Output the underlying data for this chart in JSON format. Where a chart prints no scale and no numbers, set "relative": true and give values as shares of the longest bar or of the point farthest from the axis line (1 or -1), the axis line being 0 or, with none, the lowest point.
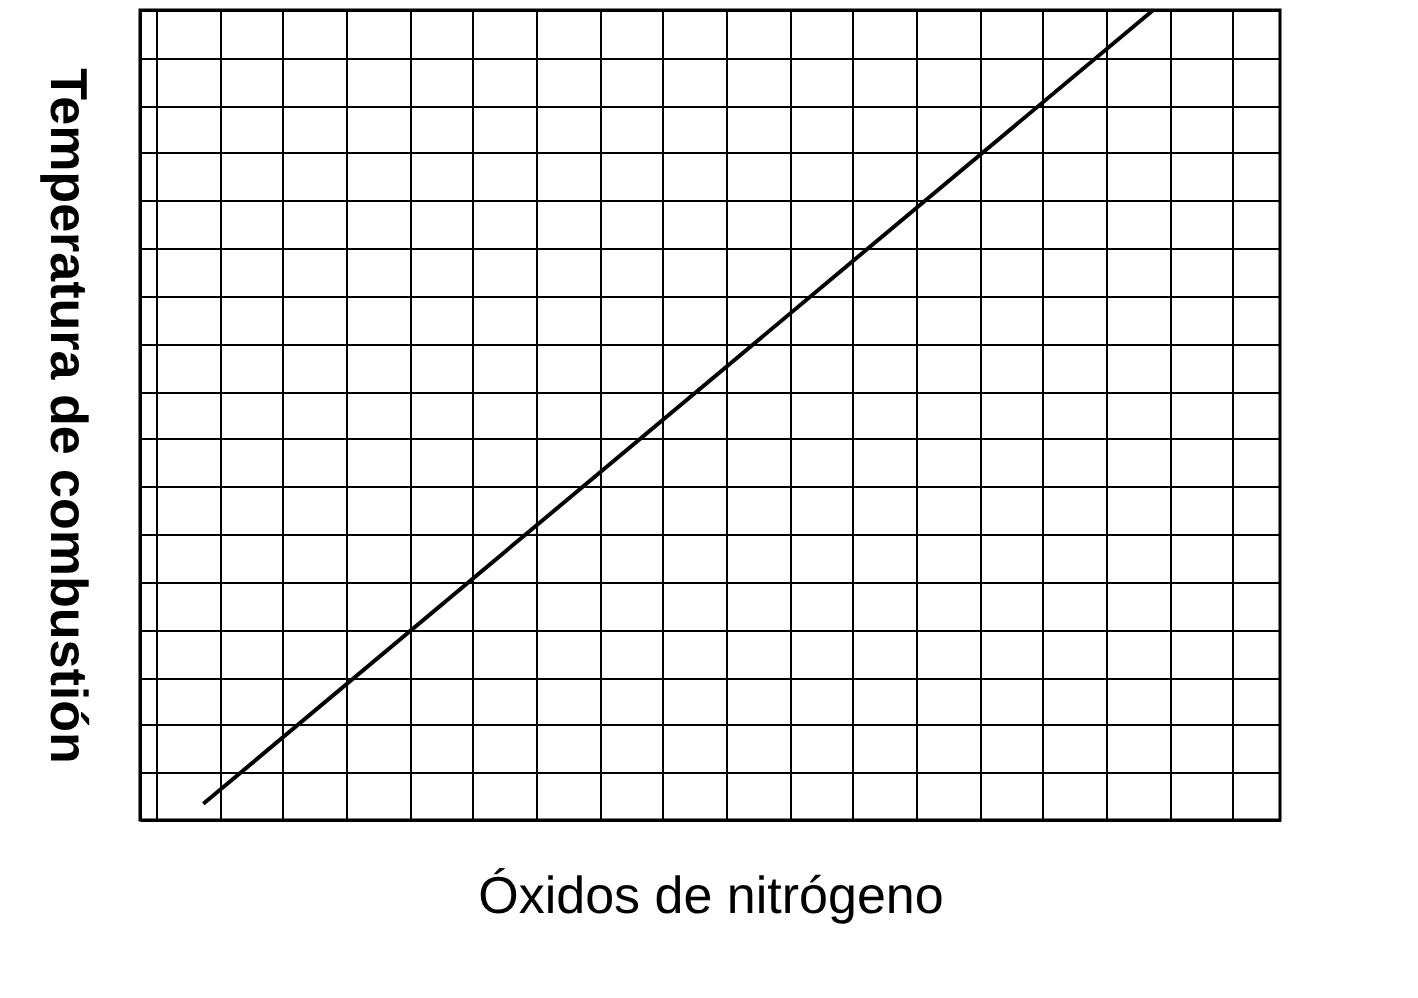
{
  "chart_data": {
    "type": "line",
    "relative": true,
    "xlabel": "Óxidos de nitrógeno",
    "ylabel": "Temperatura de combustión",
    "categories": [
      null,
      null,
      null,
      null,
      null,
      null,
      null,
      null,
      null,
      null,
      null,
      null,
      null,
      null,
      null,
      null,
      null,
      null,
      null,
      null,
      null,
      null,
      null,
      null,
      null,
      null,
      null,
      null,
      null,
      null,
      null,
      null,
      null,
      null,
      null
    ],
    "series": [
      {
        "color": "#000000",
        "values": [
          null,
          0.02,
          null,
          null,
          null,
          null,
          null,
          null,
          null,
          null,
          null,
          null,
          null,
          null,
          null,
          null,
          null,
          null,
          null,
          null,
          null,
          null,
          null,
          null,
          null,
          null,
          null,
          null,
          null,
          null,
          null,
          1,
          null,
          null,
          null
        ]
      }
    ],
    "grid": true,
    "marker": "none",
    "line_style": "solid"
  }
}
